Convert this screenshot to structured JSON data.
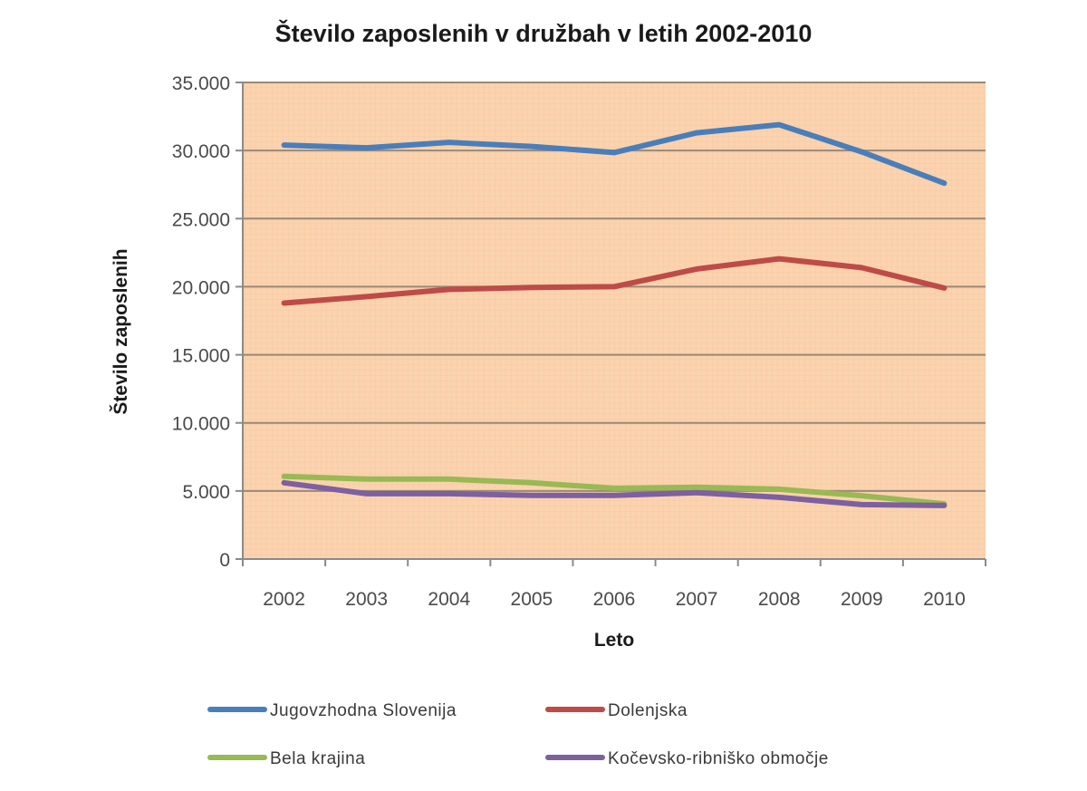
{
  "chart_data": {
    "type": "line",
    "title": "Število zaposlenih v družbah v letih 2002-2010",
    "xlabel": "Leto",
    "ylabel": "Število zaposlenih",
    "categories": [
      "2002",
      "2003",
      "2004",
      "2005",
      "2006",
      "2007",
      "2008",
      "2009",
      "2010"
    ],
    "ylim": [
      0,
      35000
    ],
    "yticks": [
      0,
      5000,
      10000,
      15000,
      20000,
      25000,
      30000,
      35000
    ],
    "ytick_labels": [
      "0",
      "5.000",
      "10.000",
      "15.000",
      "20.000",
      "25.000",
      "30.000",
      "35.000"
    ],
    "grid": "horizontal",
    "plot_background": "#fbd3ae",
    "legend_position": "bottom",
    "series": [
      {
        "name": "Jugovzhodna Slovenija",
        "color": "#4a7ebb",
        "values": [
          30400,
          30200,
          30600,
          30300,
          29850,
          31300,
          31900,
          29900,
          27600
        ]
      },
      {
        "name": "Dolenjska",
        "color": "#be4b48",
        "values": [
          18800,
          19270,
          19800,
          19950,
          20000,
          21300,
          22050,
          21400,
          19900
        ]
      },
      {
        "name": "Bela krajina",
        "color": "#98b954",
        "values": [
          6070,
          5870,
          5870,
          5600,
          5200,
          5270,
          5130,
          4650,
          4050
        ]
      },
      {
        "name": "Kočevsko-ribniško območje",
        "color": "#7d60a0",
        "values": [
          5600,
          4800,
          4800,
          4670,
          4670,
          4870,
          4530,
          4000,
          3930
        ]
      }
    ]
  }
}
